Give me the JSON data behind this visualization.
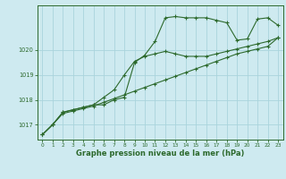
{
  "bg_color": "#ceeaf0",
  "line_color": "#2d6a2d",
  "grid_color": "#aad4dc",
  "xlabel": "Graphe pression niveau de la mer (hPa)",
  "xlim": [
    -0.5,
    23.5
  ],
  "ylim": [
    1016.4,
    1021.8
  ],
  "yticks": [
    1017,
    1018,
    1019,
    1020
  ],
  "xticks": [
    0,
    1,
    2,
    3,
    4,
    5,
    6,
    7,
    8,
    9,
    10,
    11,
    12,
    13,
    14,
    15,
    16,
    17,
    18,
    19,
    20,
    21,
    22,
    23
  ],
  "series1": {
    "x": [
      0,
      1,
      2,
      3,
      4,
      5,
      6,
      7,
      8,
      9,
      10,
      11,
      12,
      13,
      14,
      15,
      16,
      17,
      18,
      19,
      20,
      21,
      22,
      23
    ],
    "y": [
      1016.6,
      1017.0,
      1017.5,
      1017.6,
      1017.7,
      1017.8,
      1017.8,
      1018.0,
      1018.1,
      1019.5,
      1019.8,
      1020.35,
      1021.3,
      1021.35,
      1021.3,
      1021.3,
      1021.3,
      1021.2,
      1021.1,
      1020.4,
      1020.45,
      1021.25,
      1021.3,
      1021.0
    ]
  },
  "series2": {
    "x": [
      0,
      1,
      2,
      3,
      4,
      5,
      6,
      7,
      8,
      9,
      10,
      11,
      12,
      13,
      14,
      15,
      16,
      17,
      18,
      19,
      20,
      21,
      22,
      23
    ],
    "y": [
      1016.6,
      1017.0,
      1017.5,
      1017.6,
      1017.7,
      1017.8,
      1018.1,
      1018.4,
      1019.0,
      1019.55,
      1019.75,
      1019.85,
      1019.95,
      1019.85,
      1019.75,
      1019.75,
      1019.75,
      1019.85,
      1019.95,
      1020.05,
      1020.15,
      1020.25,
      1020.35,
      1020.5
    ]
  },
  "series3": {
    "x": [
      0,
      1,
      2,
      3,
      4,
      5,
      6,
      7,
      8,
      9,
      10,
      11,
      12,
      13,
      14,
      15,
      16,
      17,
      18,
      19,
      20,
      21,
      22,
      23
    ],
    "y": [
      1016.6,
      1017.0,
      1017.45,
      1017.55,
      1017.65,
      1017.75,
      1017.9,
      1018.05,
      1018.2,
      1018.35,
      1018.5,
      1018.65,
      1018.8,
      1018.95,
      1019.1,
      1019.25,
      1019.4,
      1019.55,
      1019.7,
      1019.85,
      1019.95,
      1020.05,
      1020.15,
      1020.5
    ]
  }
}
